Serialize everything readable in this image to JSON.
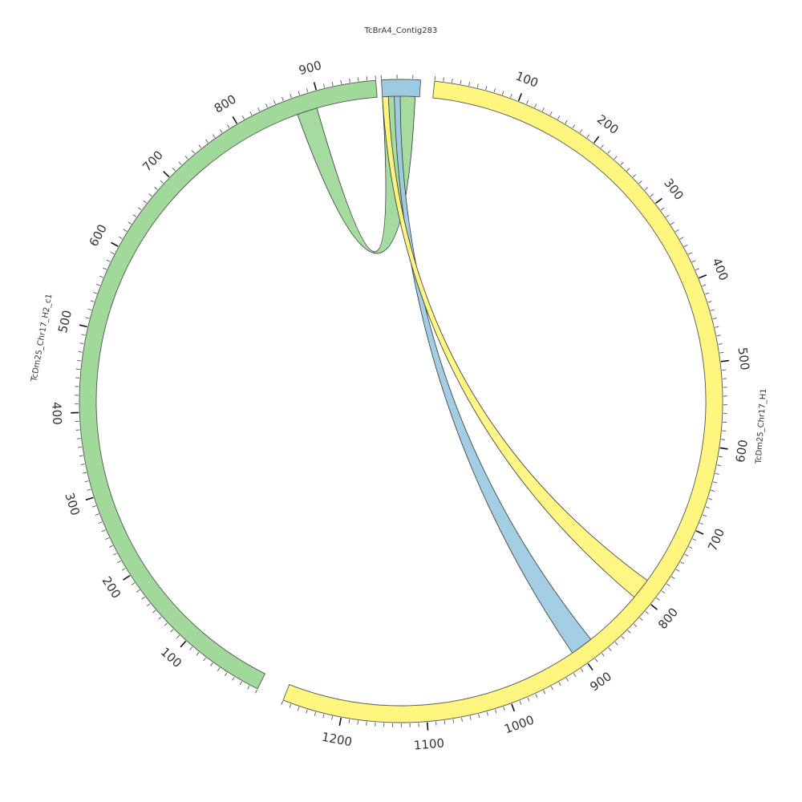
{
  "chart_data": {
    "type": "chord",
    "title": "",
    "segments": [
      {
        "name": "TcBrA4_Contig283",
        "length": 25,
        "color": "#9ecae1",
        "tick_labels": []
      },
      {
        "name": "TcDm25_Chr17_H1",
        "length": 1270,
        "color": "#fff680",
        "tick_labels": [
          "100",
          "200",
          "300",
          "400",
          "500",
          "600",
          "700",
          "800",
          "900",
          "1000",
          "1100",
          "1200"
        ]
      },
      {
        "name": "TcDm25_Chr17_H2_c1",
        "length": 970,
        "color": "#a1d99b",
        "tick_labels": [
          "100",
          "200",
          "300",
          "400",
          "500",
          "600",
          "700",
          "800",
          "900"
        ]
      }
    ],
    "links": [
      {
        "from": {
          "segment": "TcBrA4_Contig283",
          "start": 0,
          "end": 22
        },
        "to": {
          "segment": "TcDm25_Chr17_H2_c1",
          "start": 870,
          "end": 895
        },
        "color": "#a1d99b"
      },
      {
        "from": {
          "segment": "TcBrA4_Contig283",
          "start": 8,
          "end": 12
        },
        "to": {
          "segment": "TcDm25_Chr17_H1",
          "start": 880,
          "end": 908
        },
        "color": "#9ecae1"
      },
      {
        "from": {
          "segment": "TcBrA4_Contig283",
          "start": 0,
          "end": 4
        },
        "to": {
          "segment": "TcDm25_Chr17_H1",
          "start": 780,
          "end": 806
        },
        "color": "#fff680"
      }
    ]
  }
}
